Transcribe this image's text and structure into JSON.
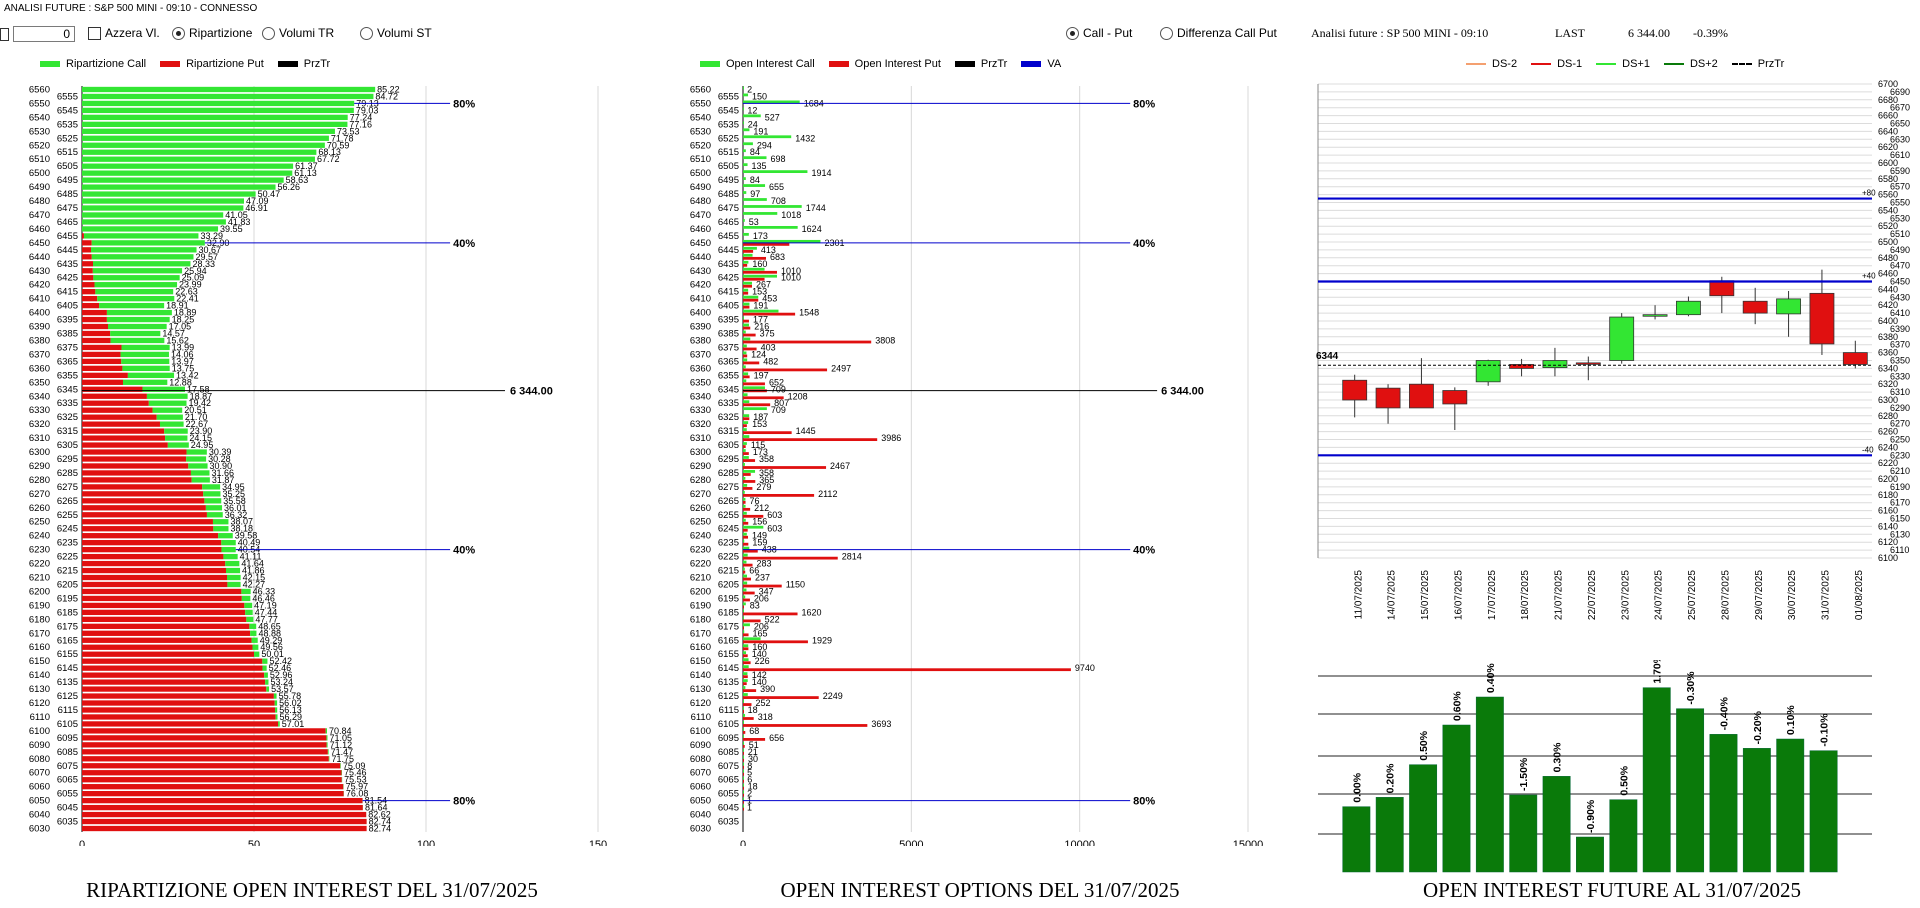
{
  "app_title": "ANALISI FUTURE : S&P 500 MINI - 09:10 - CONNESSO",
  "controls": {
    "input_value": "0",
    "azzera_label": "Azzera Vl.",
    "ripartizione_label": "Ripartizione",
    "volumi_tr_label": "Volumi TR",
    "volumi_st_label": "Volumi ST",
    "call_put_label": "Call - Put",
    "diff_call_put_label": "Differenza Call Put"
  },
  "future_header": {
    "title": "Analisi future : SP 500 MINI - 09:10",
    "last_label": "LAST",
    "last_value": "6 344.00",
    "change": "-0.39%"
  },
  "colors": {
    "call_green": "#33e633",
    "put_red": "#e01010",
    "price_black": "#000000",
    "va_blue": "#0000cc",
    "dark_green": "#0a7a0a",
    "olive": "#8a8a00"
  },
  "panel_titles": {
    "left": "RIPARTIZIONE OPEN INTEREST DEL 31/07/2025",
    "middle": "OPEN INTEREST OPTIONS DEL 31/07/2025",
    "right": "OPEN INTEREST FUTURE AL 31/07/2025"
  },
  "legends": {
    "left": [
      "Ripartizione Call",
      "Ripartizione Put",
      "PrzTr"
    ],
    "middle": [
      "Open Interest Call",
      "Open Interest Put",
      "PrzTr",
      "VA"
    ],
    "right": [
      "DS-2",
      "DS-1",
      "DS+1",
      "DS+2",
      "PrzTr"
    ]
  },
  "chart_data": [
    {
      "type": "bar",
      "orientation": "horizontal-stacked",
      "title": "RIPARTIZIONE OPEN INTEREST DEL 31/07/2025",
      "strikes": [
        6560,
        6555,
        6550,
        6545,
        6540,
        6535,
        6530,
        6525,
        6520,
        6515,
        6510,
        6505,
        6500,
        6495,
        6490,
        6485,
        6480,
        6475,
        6470,
        6465,
        6460,
        6455,
        6450,
        6445,
        6440,
        6435,
        6430,
        6425,
        6420,
        6415,
        6410,
        6405,
        6400,
        6395,
        6390,
        6385,
        6380,
        6375,
        6370,
        6365,
        6360,
        6355,
        6350,
        6345,
        6340,
        6335,
        6330,
        6325,
        6320,
        6315,
        6310,
        6305,
        6300,
        6295,
        6290,
        6285,
        6280,
        6275,
        6270,
        6265,
        6260,
        6255,
        6250,
        6245,
        6240,
        6235,
        6230,
        6225,
        6220,
        6215,
        6210,
        6205,
        6200,
        6195,
        6190,
        6185,
        6180,
        6175,
        6170,
        6165,
        6160,
        6155,
        6150,
        6145,
        6140,
        6135,
        6130,
        6125,
        6120,
        6115,
        6110,
        6105,
        6100,
        6095,
        6090,
        6085,
        6080,
        6075,
        6070,
        6065,
        6060,
        6055,
        6050,
        6045,
        6040,
        6035,
        6030
      ],
      "call_pct": [
        85.22,
        84.72,
        79.13,
        79.03,
        77.24,
        77.16,
        73.53,
        71.78,
        70.59,
        68.13,
        67.72,
        61.37,
        61.13,
        58.63,
        56.26,
        50.47,
        47.09,
        46.91,
        41.05,
        41.83,
        39.55,
        33.29,
        32.9,
        30.67,
        29.57,
        28.33,
        25.94,
        25.09,
        23.99,
        22.63,
        22.41,
        18.91,
        18.89,
        18.25,
        17.05,
        14.57,
        15.62,
        13.99,
        14.06,
        13.97,
        13.75,
        13.42,
        12.88,
        12.36,
        11.83,
        10.96,
        8.62,
        7.63,
        6.87,
        6.84,
        6.5,
        6.1,
        5.9,
        5.8,
        5.6,
        5.4,
        5.3,
        5.2,
        5.0,
        4.9,
        4.7,
        4.6,
        4.5,
        4.4,
        4.25,
        4.21,
        4.15,
        4.14,
        4.1,
        4.08,
        3.96,
        3.83,
        2.7,
        2.48,
        2.28,
        2.18,
        2.04,
        1.99,
        1.83,
        1.79,
        1.71,
        1.54,
        1.49,
        1.22,
        1.08,
        0.97,
        0.81,
        0.78,
        0.7,
        0.62,
        0.55,
        0.47,
        0.38,
        0.31,
        0.27,
        0.22,
        0.18,
        0.15,
        0.12,
        0.1,
        0.08,
        0.06,
        0.04,
        0.03,
        0.02,
        0.01,
        0.0
      ],
      "put_pct": [
        0,
        0,
        0,
        0,
        0,
        0,
        0,
        0,
        0,
        0,
        0,
        0,
        0,
        0,
        0,
        0,
        0,
        0,
        0,
        0,
        0,
        0.56,
        2.81,
        2.62,
        2.84,
        3.2,
        3.15,
        3.3,
        3.64,
        3.88,
        4.42,
        4.97,
        7.24,
        7.24,
        7.56,
        8.2,
        8.32,
        11.49,
        11.22,
        11.41,
        11.75,
        13.34,
        11.92,
        17.58,
        18.87,
        19.42,
        20.51,
        21.7,
        22.67,
        23.9,
        24.15,
        24.95,
        30.39,
        30.28,
        30.9,
        31.66,
        31.87,
        34.95,
        35.25,
        35.58,
        36.01,
        36.32,
        38.07,
        38.18,
        39.58,
        40.49,
        40.54,
        41.11,
        41.64,
        41.86,
        42.15,
        42.27,
        46.33,
        46.46,
        47.19,
        47.44,
        47.77,
        48.65,
        48.88,
        49.29,
        49.56,
        50.01,
        52.42,
        52.46,
        52.96,
        53.24,
        53.57,
        55.78,
        56.02,
        56.13,
        56.29,
        57.01,
        70.84,
        71.05,
        71.12,
        71.47,
        71.75,
        75.09,
        75.46,
        75.53,
        75.97,
        76.08,
        81.54,
        81.64,
        82.62,
        82.74,
        82.74
      ],
      "xticks": [
        "0",
        "50",
        "100",
        "150"
      ],
      "xlim": [
        0,
        150
      ],
      "price_label": "6 344.00",
      "reference_lines": [
        {
          "label": "80%",
          "strike": 6550
        },
        {
          "label": "40%",
          "strike": 6450
        },
        {
          "label": "40%",
          "strike": 6230
        },
        {
          "label": "80%",
          "strike": 6050
        }
      ]
    },
    {
      "type": "bar",
      "orientation": "horizontal",
      "title": "OPEN INTEREST OPTIONS DEL 31/07/2025",
      "strikes": [
        6560,
        6555,
        6550,
        6545,
        6540,
        6535,
        6530,
        6525,
        6520,
        6515,
        6510,
        6505,
        6500,
        6495,
        6490,
        6485,
        6480,
        6475,
        6470,
        6465,
        6460,
        6455,
        6450,
        6445,
        6440,
        6435,
        6430,
        6425,
        6420,
        6415,
        6410,
        6405,
        6400,
        6395,
        6390,
        6385,
        6380,
        6375,
        6370,
        6365,
        6360,
        6355,
        6350,
        6345,
        6340,
        6335,
        6330,
        6325,
        6320,
        6315,
        6310,
        6305,
        6300,
        6295,
        6290,
        6285,
        6280,
        6275,
        6270,
        6265,
        6260,
        6255,
        6250,
        6245,
        6240,
        6235,
        6230,
        6225,
        6220,
        6215,
        6210,
        6205,
        6200,
        6195,
        6190,
        6185,
        6180,
        6175,
        6170,
        6165,
        6160,
        6155,
        6150,
        6145,
        6140,
        6135,
        6130,
        6125,
        6120,
        6115,
        6110,
        6105,
        6100,
        6095,
        6090,
        6085,
        6080,
        6075,
        6070,
        6065,
        6060,
        6055,
        6050,
        6045,
        6040,
        6035,
        6030
      ],
      "call_oi": [
        2,
        150,
        1684,
        12,
        527,
        24,
        191,
        1432,
        294,
        84,
        698,
        135,
        1914,
        84,
        655,
        97,
        708,
        1744,
        1018,
        53,
        1624,
        173,
        2301,
        413,
        283,
        160,
        640,
        1010,
        267,
        153,
        453,
        191,
        1054,
        16,
        177,
        82,
        216,
        113,
        103,
        124,
        82,
        152,
        97,
        652,
        135,
        186,
        709,
        183,
        153,
        112,
        187,
        115,
        80,
        173,
        58,
        358,
        70,
        123,
        53,
        72,
        76,
        112,
        82,
        603,
        113,
        37,
        187,
        139,
        103,
        53,
        119,
        123,
        103,
        66,
        83,
        28,
        7,
        206,
        36,
        522,
        155,
        90,
        165,
        169,
        132,
        140,
        70,
        142,
        25,
        13,
        61,
        18,
        16,
        8,
        2,
        7,
        30,
        8,
        5,
        6,
        18,
        2,
        1,
        1,
        0,
        0,
        0
      ],
      "put_oi": [
        0,
        0,
        0,
        0,
        0,
        0,
        0,
        0,
        0,
        0,
        0,
        0,
        0,
        0,
        0,
        0,
        0,
        0,
        0,
        0,
        0,
        0,
        1376,
        300,
        683,
        124,
        1010,
        640,
        267,
        153,
        453,
        191,
        1548,
        177,
        216,
        375,
        3808,
        403,
        124,
        482,
        2497,
        197,
        652,
        709,
        1208,
        807,
        0,
        187,
        115,
        1445,
        3986,
        80,
        173,
        358,
        2467,
        229,
        365,
        279,
        2112,
        76,
        212,
        603,
        156,
        139,
        149,
        159,
        438,
        2814,
        283,
        66,
        237,
        1150,
        347,
        206,
        14,
        1620,
        522,
        15,
        165,
        1929,
        160,
        140,
        226,
        9740,
        142,
        110,
        390,
        2249,
        252,
        18,
        318,
        3693,
        68,
        656,
        51,
        21,
        10,
        5,
        3,
        2,
        1,
        1,
        1,
        1,
        0
      ],
      "xticks": [
        "0",
        "5000",
        "10000",
        "15000"
      ],
      "xlim": [
        0,
        15000
      ],
      "price_label": "6 344.00",
      "reference_lines": [
        {
          "label": "80%",
          "strike": 6550
        },
        {
          "label": "40%",
          "strike": 6450
        },
        {
          "label": "40%",
          "strike": 6230
        },
        {
          "label": "80%",
          "strike": 6050
        }
      ]
    },
    {
      "type": "candlestick",
      "title": "Analisi future : SP 500 MINI - 09:10",
      "dates": [
        "11/07/2025",
        "14/07/2025",
        "15/07/2025",
        "16/07/2025",
        "17/07/2025",
        "18/07/2025",
        "21/07/2025",
        "22/07/2025",
        "23/07/2025",
        "24/07/2025",
        "25/07/2025",
        "28/07/2025",
        "29/07/2025",
        "30/07/2025",
        "31/07/2025",
        "01/08/2025"
      ],
      "open": [
        6325,
        6315,
        6320,
        6312,
        6323,
        6345,
        6341,
        6347,
        6350,
        6406,
        6408,
        6451,
        6425,
        6409,
        6435,
        6360
      ],
      "close": [
        6300,
        6290,
        6290,
        6295,
        6350,
        6340,
        6350,
        6346,
        6405,
        6408,
        6425,
        6432,
        6410,
        6428,
        6371,
        6345
      ],
      "high": [
        6332,
        6320,
        6353,
        6316,
        6351,
        6352,
        6366,
        6355,
        6410,
        6420,
        6431,
        6456,
        6442,
        6438,
        6465,
        6375
      ],
      "low": [
        6278,
        6270,
        6290,
        6262,
        6318,
        6330,
        6330,
        6325,
        6346,
        6402,
        6406,
        6410,
        6396,
        6380,
        6357,
        6340
      ],
      "last_label": "6344",
      "ylim": [
        6100,
        6700
      ],
      "yticks": [
        6100,
        6110,
        6120,
        6130,
        6140,
        6150,
        6160,
        6170,
        6180,
        6190,
        6200,
        6210,
        6220,
        6230,
        6240,
        6250,
        6260,
        6270,
        6280,
        6290,
        6300,
        6310,
        6320,
        6330,
        6340,
        6350,
        6360,
        6370,
        6380,
        6390,
        6400,
        6410,
        6420,
        6430,
        6440,
        6450,
        6460,
        6470,
        6480,
        6490,
        6500,
        6510,
        6520,
        6530,
        6540,
        6550,
        6560,
        6570,
        6580,
        6590,
        6600,
        6610,
        6620,
        6630,
        6640,
        6650,
        6660,
        6670,
        6680,
        6690,
        6700
      ],
      "reference_lines": [
        {
          "label": "+80",
          "value": 6555
        },
        {
          "label": "+40",
          "value": 6450
        },
        {
          "label": "-40",
          "value": 6230
        }
      ],
      "series_legend": [
        "DS-2",
        "DS-1",
        "DS+1",
        "DS+2",
        "PrzTr"
      ]
    },
    {
      "type": "bar",
      "title": "OPEN INTEREST FUTURE AL 31/07/2025",
      "categories": [
        "11/07/2025",
        "14/07/2025",
        "15/07/2025",
        "16/07/2025",
        "17/07/2025",
        "18/07/2025",
        "21/07/2025",
        "22/07/2025",
        "23/07/2025",
        "24/07/2025",
        "25/07/2025",
        "28/07/2025",
        "29/07/2025",
        "30/07/2025",
        "31/07/2025"
      ],
      "values": [
        1.4,
        1.6,
        2.3,
        3.15,
        3.75,
        1.65,
        2.05,
        0.75,
        1.55,
        3.95,
        3.5,
        2.95,
        2.65,
        2.85,
        2.6
      ],
      "labels": [
        "0.00%",
        "0.20%",
        "0.50%",
        "0.60%",
        "0.40%",
        "-1.50%",
        "0.30%",
        "-0.90%",
        "0.50%",
        "1.70%",
        "-0.30%",
        "-0.40%",
        "-0.20%",
        "0.10%",
        "-0.10%"
      ]
    }
  ]
}
